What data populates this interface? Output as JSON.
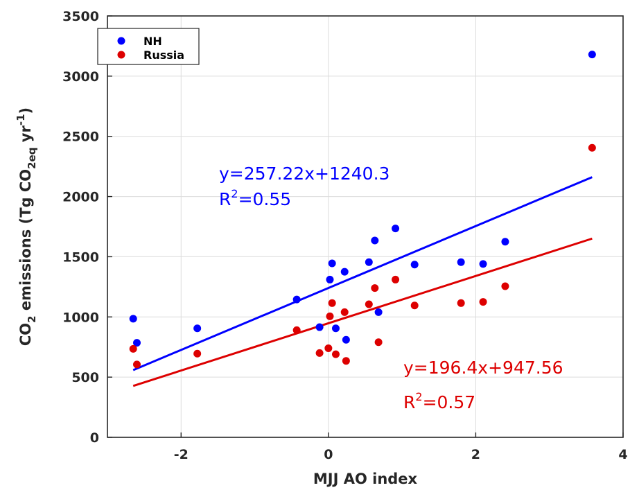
{
  "chart_data": {
    "type": "scatter",
    "xlabel": "MJJ AO index",
    "ylabel": {
      "prefix": "CO",
      "prefix_sub": "2",
      "main": " emissions (Tg CO",
      "main_sub": "2eq",
      "after": " yr",
      "after_sup": "-1",
      "suffix": ")"
    },
    "xlim": [
      -3,
      4
    ],
    "ylim": [
      0,
      3500
    ],
    "xticks": [
      -2,
      0,
      2,
      4
    ],
    "xtick_labels": [
      "-2",
      "0",
      "2",
      "4"
    ],
    "yticks": [
      0,
      500,
      1000,
      1500,
      2000,
      2500,
      3000,
      3500
    ],
    "ytick_labels": [
      "0",
      "500",
      "1000",
      "1500",
      "2000",
      "2500",
      "3000",
      "3500"
    ],
    "grid": true,
    "legend_position": "top-left",
    "series": [
      {
        "name": "NH",
        "color": "#0000ff",
        "points": [
          {
            "x": -2.65,
            "y": 985
          },
          {
            "x": -2.6,
            "y": 785
          },
          {
            "x": -1.78,
            "y": 905
          },
          {
            "x": -0.43,
            "y": 1145
          },
          {
            "x": -0.12,
            "y": 915
          },
          {
            "x": 0.02,
            "y": 1310
          },
          {
            "x": 0.05,
            "y": 1445
          },
          {
            "x": 0.1,
            "y": 905
          },
          {
            "x": 0.22,
            "y": 1375
          },
          {
            "x": 0.24,
            "y": 810
          },
          {
            "x": 0.55,
            "y": 1455
          },
          {
            "x": 0.63,
            "y": 1635
          },
          {
            "x": 0.68,
            "y": 1040
          },
          {
            "x": 0.91,
            "y": 1735
          },
          {
            "x": 1.17,
            "y": 1435
          },
          {
            "x": 1.8,
            "y": 1455
          },
          {
            "x": 2.1,
            "y": 1440
          },
          {
            "x": 2.4,
            "y": 1625
          },
          {
            "x": 3.58,
            "y": 3180
          }
        ],
        "fit": {
          "slope": 257.22,
          "intercept": 1240.3,
          "x_range": [
            -2.65,
            3.58
          ]
        }
      },
      {
        "name": "Russia",
        "color": "#dd0000",
        "points": [
          {
            "x": -2.65,
            "y": 735
          },
          {
            "x": -2.6,
            "y": 605
          },
          {
            "x": -1.78,
            "y": 695
          },
          {
            "x": -0.43,
            "y": 890
          },
          {
            "x": -0.12,
            "y": 700
          },
          {
            "x": 0.0,
            "y": 740
          },
          {
            "x": 0.02,
            "y": 1005
          },
          {
            "x": 0.05,
            "y": 1115
          },
          {
            "x": 0.1,
            "y": 690
          },
          {
            "x": 0.22,
            "y": 1040
          },
          {
            "x": 0.24,
            "y": 635
          },
          {
            "x": 0.55,
            "y": 1105
          },
          {
            "x": 0.63,
            "y": 1240
          },
          {
            "x": 0.68,
            "y": 790
          },
          {
            "x": 0.91,
            "y": 1310
          },
          {
            "x": 1.17,
            "y": 1095
          },
          {
            "x": 1.8,
            "y": 1115
          },
          {
            "x": 2.1,
            "y": 1125
          },
          {
            "x": 2.4,
            "y": 1255
          },
          {
            "x": 3.58,
            "y": 2405
          }
        ],
        "fit": {
          "slope": 196.4,
          "intercept": 947.56,
          "x_range": [
            -2.65,
            3.58
          ]
        }
      }
    ],
    "annotations": {
      "nh_equation": "y=257.22x+1240.3",
      "nh_r2_base": "R",
      "nh_r2_sup": "2",
      "nh_r2_value": "=0.55",
      "russia_equation": "y=196.4x+947.56",
      "russia_r2_base": "R",
      "russia_r2_sup": "2",
      "russia_r2_value": "=0.57"
    }
  }
}
